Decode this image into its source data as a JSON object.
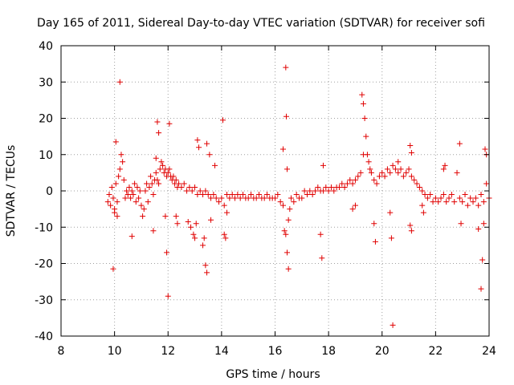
{
  "chart_data": {
    "type": "scatter",
    "title": "Day 165 of 2011, Sidereal Day-to-day VTEC variation (SDTVAR) for receiver sofi",
    "xlabel": "GPS time / hours",
    "ylabel": "SDTVAR / TECUs",
    "xlim": [
      8,
      24
    ],
    "ylim": [
      -40,
      40
    ],
    "xticks": [
      8,
      10,
      12,
      14,
      16,
      18,
      20,
      22,
      24
    ],
    "yticks": [
      -40,
      -30,
      -20,
      -10,
      0,
      10,
      20,
      30,
      40
    ],
    "grid": true,
    "marker": "+",
    "color": "#e00000",
    "series": [
      {
        "name": "SDTVAR",
        "points": [
          [
            9.75,
            -3
          ],
          [
            9.8,
            -1
          ],
          [
            9.85,
            -4
          ],
          [
            9.9,
            1
          ],
          [
            9.95,
            -2
          ],
          [
            10.0,
            -5
          ],
          [
            10.05,
            2
          ],
          [
            10.1,
            -3
          ],
          [
            10.15,
            4
          ],
          [
            10.2,
            6
          ],
          [
            10.25,
            10
          ],
          [
            10.3,
            8
          ],
          [
            10.35,
            3
          ],
          [
            10.4,
            -2
          ],
          [
            10.45,
            0
          ],
          [
            10.5,
            -1
          ],
          [
            10.55,
            1
          ],
          [
            10.6,
            -2
          ],
          [
            10.65,
            0
          ],
          [
            10.7,
            -1
          ],
          [
            10.75,
            2
          ],
          [
            10.8,
            -3
          ],
          [
            10.85,
            1
          ],
          [
            10.9,
            -2
          ],
          [
            10.95,
            0
          ],
          [
            11.0,
            -4
          ],
          [
            11.05,
            -7
          ],
          [
            11.1,
            -5
          ],
          [
            11.15,
            0
          ],
          [
            11.2,
            2
          ],
          [
            11.25,
            -3
          ],
          [
            11.3,
            1
          ],
          [
            11.35,
            4
          ],
          [
            11.4,
            2
          ],
          [
            11.45,
            -1
          ],
          [
            11.5,
            3
          ],
          [
            11.55,
            5
          ],
          [
            11.6,
            3
          ],
          [
            11.65,
            2
          ],
          [
            11.7,
            6
          ],
          [
            11.75,
            8
          ],
          [
            11.8,
            7
          ],
          [
            11.85,
            5
          ],
          [
            11.9,
            6
          ],
          [
            11.95,
            4
          ],
          [
            12.0,
            5
          ],
          [
            12.05,
            6
          ],
          [
            12.1,
            4
          ],
          [
            12.15,
            3
          ],
          [
            12.2,
            4
          ],
          [
            12.25,
            2
          ],
          [
            12.3,
            3
          ],
          [
            12.35,
            1
          ],
          [
            12.4,
            2
          ],
          [
            12.5,
            1
          ],
          [
            12.6,
            2
          ],
          [
            12.7,
            0
          ],
          [
            12.8,
            1
          ],
          [
            12.9,
            0
          ],
          [
            13.0,
            1
          ],
          [
            13.1,
            -1
          ],
          [
            13.2,
            0
          ],
          [
            13.3,
            -1
          ],
          [
            13.4,
            0
          ],
          [
            13.5,
            -1
          ],
          [
            13.6,
            -2
          ],
          [
            13.7,
            -1
          ],
          [
            13.8,
            -2
          ],
          [
            13.9,
            -3
          ],
          [
            14.0,
            -2
          ],
          [
            14.1,
            -4
          ],
          [
            14.2,
            -1
          ],
          [
            14.3,
            -2
          ],
          [
            14.4,
            -1
          ],
          [
            14.5,
            -2
          ],
          [
            14.6,
            -1
          ],
          [
            14.7,
            -2
          ],
          [
            14.8,
            -1
          ],
          [
            14.9,
            -2
          ],
          [
            15.0,
            -2
          ],
          [
            15.1,
            -1
          ],
          [
            15.2,
            -2
          ],
          [
            15.3,
            -2
          ],
          [
            15.4,
            -1
          ],
          [
            15.5,
            -2
          ],
          [
            15.6,
            -2
          ],
          [
            15.7,
            -1
          ],
          [
            15.8,
            -2
          ],
          [
            15.9,
            -2
          ],
          [
            16.0,
            -2
          ],
          [
            16.1,
            -1
          ],
          [
            16.2,
            -3
          ],
          [
            16.3,
            -4
          ],
          [
            16.4,
            -12
          ],
          [
            16.45,
            -17
          ],
          [
            16.5,
            -8
          ],
          [
            16.55,
            -5
          ],
          [
            16.6,
            -2
          ],
          [
            16.7,
            -3
          ],
          [
            16.8,
            -1
          ],
          [
            16.9,
            -2
          ],
          [
            17.0,
            -2
          ],
          [
            17.1,
            0
          ],
          [
            17.2,
            -1
          ],
          [
            17.3,
            0
          ],
          [
            17.4,
            -1
          ],
          [
            17.5,
            0
          ],
          [
            17.6,
            1
          ],
          [
            17.7,
            0
          ],
          [
            17.8,
            0
          ],
          [
            17.9,
            1
          ],
          [
            18.0,
            0
          ],
          [
            18.1,
            1
          ],
          [
            18.2,
            0
          ],
          [
            18.3,
            1
          ],
          [
            18.4,
            1
          ],
          [
            18.5,
            2
          ],
          [
            18.6,
            1
          ],
          [
            18.7,
            2
          ],
          [
            18.8,
            3
          ],
          [
            18.9,
            2
          ],
          [
            19.0,
            3
          ],
          [
            19.1,
            4
          ],
          [
            19.2,
            5
          ],
          [
            19.3,
            10
          ],
          [
            19.35,
            20
          ],
          [
            19.4,
            15
          ],
          [
            19.45,
            10
          ],
          [
            19.5,
            8
          ],
          [
            19.55,
            6
          ],
          [
            19.6,
            5
          ],
          [
            19.7,
            3
          ],
          [
            19.8,
            2
          ],
          [
            19.9,
            4
          ],
          [
            20.0,
            5
          ],
          [
            20.1,
            4
          ],
          [
            20.2,
            6
          ],
          [
            20.3,
            5
          ],
          [
            20.4,
            7
          ],
          [
            20.5,
            6
          ],
          [
            20.6,
            5
          ],
          [
            20.7,
            6
          ],
          [
            20.8,
            4
          ],
          [
            20.9,
            5
          ],
          [
            21.0,
            6
          ],
          [
            21.1,
            4
          ],
          [
            21.2,
            3
          ],
          [
            21.3,
            2
          ],
          [
            21.4,
            1
          ],
          [
            21.5,
            0
          ],
          [
            21.6,
            -1
          ],
          [
            21.7,
            -2
          ],
          [
            21.8,
            -1
          ],
          [
            21.9,
            -3
          ],
          [
            22.0,
            -2
          ],
          [
            22.1,
            -3
          ],
          [
            22.2,
            -2
          ],
          [
            22.3,
            -1
          ],
          [
            22.4,
            -3
          ],
          [
            22.5,
            -2
          ],
          [
            22.6,
            -1
          ],
          [
            22.7,
            -3
          ],
          [
            22.8,
            5
          ],
          [
            22.9,
            -2
          ],
          [
            23.0,
            -3
          ],
          [
            23.1,
            -1
          ],
          [
            23.2,
            -4
          ],
          [
            23.3,
            -2
          ],
          [
            23.4,
            -3
          ],
          [
            23.5,
            -2
          ],
          [
            23.6,
            -4
          ],
          [
            23.7,
            -1
          ],
          [
            23.8,
            -3
          ],
          [
            23.9,
            2
          ],
          [
            24.0,
            -2
          ],
          [
            10.05,
            13.5
          ],
          [
            10.2,
            30
          ],
          [
            9.95,
            -21.5
          ],
          [
            10.0,
            -6
          ],
          [
            10.1,
            -7
          ],
          [
            10.65,
            -12.5
          ],
          [
            11.45,
            -11
          ],
          [
            11.6,
            19
          ],
          [
            11.65,
            16
          ],
          [
            11.95,
            -17
          ],
          [
            12.0,
            -29
          ],
          [
            12.05,
            18.5
          ],
          [
            11.9,
            -7
          ],
          [
            11.55,
            9
          ],
          [
            12.3,
            -7
          ],
          [
            12.35,
            -9
          ],
          [
            12.75,
            -8.5
          ],
          [
            12.85,
            -10
          ],
          [
            12.95,
            -12
          ],
          [
            13.0,
            -13
          ],
          [
            13.05,
            -9
          ],
          [
            13.1,
            14
          ],
          [
            13.15,
            12
          ],
          [
            13.3,
            -15
          ],
          [
            13.35,
            -13
          ],
          [
            13.4,
            -20.5
          ],
          [
            13.45,
            -22.5
          ],
          [
            13.45,
            13
          ],
          [
            13.55,
            10
          ],
          [
            13.6,
            -8
          ],
          [
            13.75,
            7
          ],
          [
            14.05,
            19.5
          ],
          [
            14.1,
            -12
          ],
          [
            14.15,
            -13
          ],
          [
            14.2,
            -6
          ],
          [
            16.3,
            11.5
          ],
          [
            16.35,
            -11
          ],
          [
            16.4,
            34
          ],
          [
            16.42,
            20.5
          ],
          [
            16.45,
            6
          ],
          [
            16.5,
            -21.5
          ],
          [
            17.7,
            -12
          ],
          [
            17.75,
            -18.5
          ],
          [
            17.8,
            7
          ],
          [
            18.9,
            -5
          ],
          [
            19.0,
            -4
          ],
          [
            19.25,
            26.5
          ],
          [
            19.3,
            24
          ],
          [
            19.7,
            -9
          ],
          [
            19.75,
            -14
          ],
          [
            20.3,
            -6
          ],
          [
            20.35,
            -13
          ],
          [
            20.4,
            -37
          ],
          [
            20.6,
            8
          ],
          [
            21.05,
            12.5
          ],
          [
            21.1,
            10.5
          ],
          [
            21.05,
            -9.5
          ],
          [
            21.1,
            -11
          ],
          [
            21.5,
            -4
          ],
          [
            21.55,
            -6
          ],
          [
            22.3,
            6
          ],
          [
            22.35,
            7
          ],
          [
            22.9,
            13
          ],
          [
            22.95,
            -9
          ],
          [
            23.6,
            -10.5
          ],
          [
            23.7,
            -27
          ],
          [
            23.75,
            -19
          ],
          [
            23.8,
            -9
          ],
          [
            23.85,
            11.5
          ],
          [
            23.9,
            10
          ]
        ]
      }
    ]
  }
}
